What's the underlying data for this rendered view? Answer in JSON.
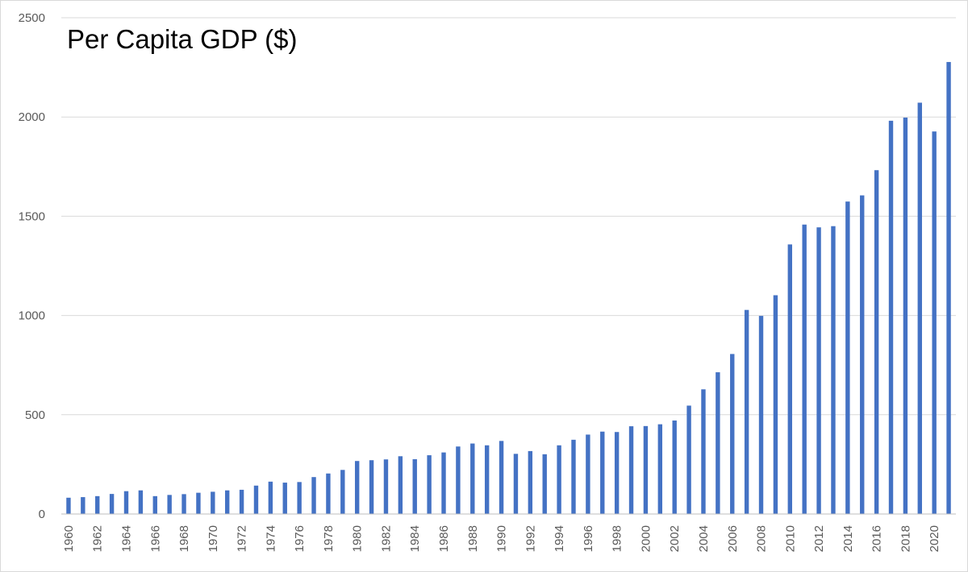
{
  "chart_data": {
    "type": "bar",
    "title": "Per Capita GDP ($)",
    "xlabel": "",
    "ylabel": "",
    "ylim": [
      0,
      2500
    ],
    "yticks": [
      0,
      500,
      1000,
      1500,
      2000,
      2500
    ],
    "grid": true,
    "legend": "none",
    "bar_color": "#4472C4",
    "categories": [
      "1960",
      "1961",
      "1962",
      "1963",
      "1964",
      "1965",
      "1966",
      "1967",
      "1968",
      "1969",
      "1970",
      "1971",
      "1972",
      "1973",
      "1974",
      "1975",
      "1976",
      "1977",
      "1978",
      "1979",
      "1980",
      "1981",
      "1982",
      "1983",
      "1984",
      "1985",
      "1986",
      "1987",
      "1988",
      "1989",
      "1990",
      "1991",
      "1992",
      "1993",
      "1994",
      "1995",
      "1996",
      "1997",
      "1998",
      "1999",
      "2000",
      "2001",
      "2002",
      "2003",
      "2004",
      "2005",
      "2006",
      "2007",
      "2008",
      "2009",
      "2010",
      "2011",
      "2012",
      "2013",
      "2014",
      "2015",
      "2016",
      "2017",
      "2018",
      "2019",
      "2020",
      "2021"
    ],
    "x_tick_labels": [
      "1960",
      "1962",
      "1964",
      "1966",
      "1968",
      "1970",
      "1972",
      "1974",
      "1976",
      "1978",
      "1980",
      "1982",
      "1984",
      "1986",
      "1988",
      "1990",
      "1992",
      "1994",
      "1996",
      "1998",
      "2000",
      "2002",
      "2004",
      "2006",
      "2008",
      "2010",
      "2012",
      "2014",
      "2016",
      "2018",
      "2020"
    ],
    "values": [
      82,
      85,
      90,
      101,
      115,
      119,
      90,
      96,
      100,
      107,
      112,
      119,
      122,
      143,
      163,
      158,
      161,
      186,
      204,
      222,
      267,
      271,
      275,
      291,
      276,
      296,
      310,
      340,
      355,
      346,
      368,
      303,
      317,
      301,
      346,
      374,
      400,
      415,
      413,
      442,
      443,
      452,
      471,
      546,
      628,
      714,
      806,
      1028,
      998,
      1102,
      1358,
      1458,
      1444,
      1450,
      1574,
      1605,
      1732,
      1981,
      1997,
      2072,
      1927,
      2277
    ]
  }
}
